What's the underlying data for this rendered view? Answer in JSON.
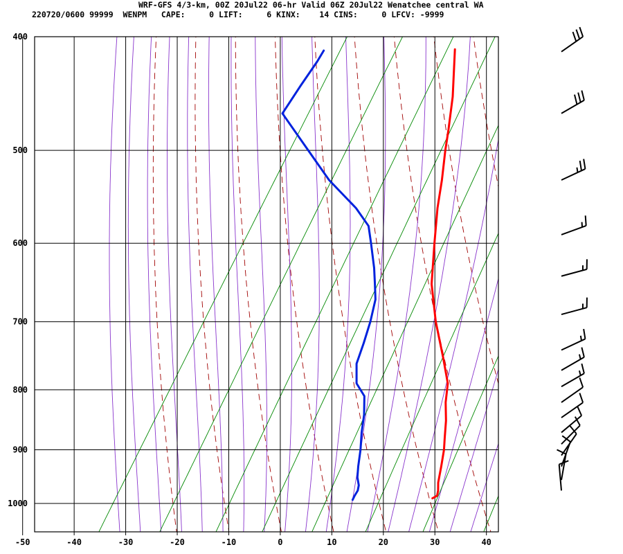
{
  "header": {
    "line1": "WRF-GFS 4/3-km, 00Z 20Jul22 06-hr Valid 06Z 20Jul22 Wenatchee central WA",
    "line2": "220720/0600 99999  WENPM   CAPE:     0 LIFT:     6 KINX:    14 CINS:     0 LFCV: -9999"
  },
  "chart_data": {
    "type": "skew-t log-p sounding",
    "x_axis": {
      "quantity": "temperature",
      "range": [
        -50,
        40
      ],
      "ticks": [
        -50,
        -40,
        -30,
        -20,
        -10,
        0,
        10,
        20,
        30,
        40
      ],
      "tick_labels": [
        "-50",
        "-40",
        "-30",
        "-20",
        "-10",
        "0",
        "10",
        "20",
        "30",
        "40"
      ]
    },
    "y_axis": {
      "quantity": "pressure",
      "scale": "log",
      "inverted": true,
      "range": [
        400,
        1040
      ],
      "ticks": [
        400,
        500,
        600,
        700,
        800,
        900,
        1000
      ],
      "tick_labels": [
        "400",
        "500",
        "600",
        "700",
        "800",
        "900",
        "1000"
      ]
    },
    "grid": true,
    "series": [
      {
        "role": "temperature",
        "color": "#ff0000",
        "points": [
          {
            "p": 410,
            "t": -21.3
          },
          {
            "p": 450,
            "t": -16.2
          },
          {
            "p": 480,
            "t": -13.2
          },
          {
            "p": 500,
            "t": -11.4
          },
          {
            "p": 530,
            "t": -8.6
          },
          {
            "p": 560,
            "t": -6.2
          },
          {
            "p": 600,
            "t": -2.7
          },
          {
            "p": 650,
            "t": 1.5
          },
          {
            "p": 700,
            "t": 6.7
          },
          {
            "p": 750,
            "t": 12.2
          },
          {
            "p": 790,
            "t": 16.2
          },
          {
            "p": 820,
            "t": 18.0
          },
          {
            "p": 850,
            "t": 20.2
          },
          {
            "p": 880,
            "t": 22.0
          },
          {
            "p": 900,
            "t": 23.2
          },
          {
            "p": 930,
            "t": 24.6
          },
          {
            "p": 960,
            "t": 25.9
          },
          {
            "p": 975,
            "t": 26.8
          },
          {
            "p": 985,
            "t": 27.2
          },
          {
            "p": 990,
            "t": 26.6
          }
        ]
      },
      {
        "role": "dewpoint",
        "color": "#0022dd",
        "points": [
          {
            "p": 411,
            "t": -46.6
          },
          {
            "p": 420,
            "t": -46.6
          },
          {
            "p": 440,
            "t": -47.0
          },
          {
            "p": 465,
            "t": -47.3
          },
          {
            "p": 500,
            "t": -38.0
          },
          {
            "p": 530,
            "t": -30.5
          },
          {
            "p": 560,
            "t": -22.0
          },
          {
            "p": 580,
            "t": -17.5
          },
          {
            "p": 600,
            "t": -15.0
          },
          {
            "p": 630,
            "t": -11.5
          },
          {
            "p": 650,
            "t": -9.5
          },
          {
            "p": 670,
            "t": -7.6
          },
          {
            "p": 700,
            "t": -6.0
          },
          {
            "p": 730,
            "t": -4.8
          },
          {
            "p": 760,
            "t": -3.8
          },
          {
            "p": 790,
            "t": -1.5
          },
          {
            "p": 810,
            "t": 1.5
          },
          {
            "p": 840,
            "t": 3.6
          },
          {
            "p": 870,
            "t": 5.2
          },
          {
            "p": 900,
            "t": 7.0
          },
          {
            "p": 930,
            "t": 8.5
          },
          {
            "p": 950,
            "t": 9.6
          },
          {
            "p": 965,
            "t": 10.8
          },
          {
            "p": 975,
            "t": 11.2
          },
          {
            "p": 985,
            "t": 11.2
          },
          {
            "p": 993,
            "t": 11.3
          }
        ]
      }
    ],
    "background_lines": {
      "isotherms_color": "#000000",
      "dry_adiabats_color": "#a00000",
      "moist_adiabats_color": "#8833cc",
      "mixing_ratio_color": "#008800"
    },
    "wind_barbs": [
      {
        "p": 412,
        "dir": 235,
        "speed_kt": 30
      },
      {
        "p": 465,
        "dir": 240,
        "speed_kt": 30
      },
      {
        "p": 530,
        "dir": 245,
        "speed_kt": 25
      },
      {
        "p": 590,
        "dir": 250,
        "speed_kt": 15
      },
      {
        "p": 640,
        "dir": 255,
        "speed_kt": 15
      },
      {
        "p": 690,
        "dir": 255,
        "speed_kt": 15
      },
      {
        "p": 740,
        "dir": 245,
        "speed_kt": 15
      },
      {
        "p": 770,
        "dir": 240,
        "speed_kt": 15
      },
      {
        "p": 795,
        "dir": 240,
        "speed_kt": 15
      },
      {
        "p": 820,
        "dir": 235,
        "speed_kt": 10
      },
      {
        "p": 845,
        "dir": 235,
        "speed_kt": 10
      },
      {
        "p": 870,
        "dir": 230,
        "speed_kt": 10
      },
      {
        "p": 890,
        "dir": 225,
        "speed_kt": 10
      },
      {
        "p": 910,
        "dir": 215,
        "speed_kt": 10
      },
      {
        "p": 930,
        "dir": 200,
        "speed_kt": 10
      },
      {
        "p": 955,
        "dir": 190,
        "speed_kt": 10
      },
      {
        "p": 975,
        "dir": 175,
        "speed_kt": 10
      }
    ]
  }
}
